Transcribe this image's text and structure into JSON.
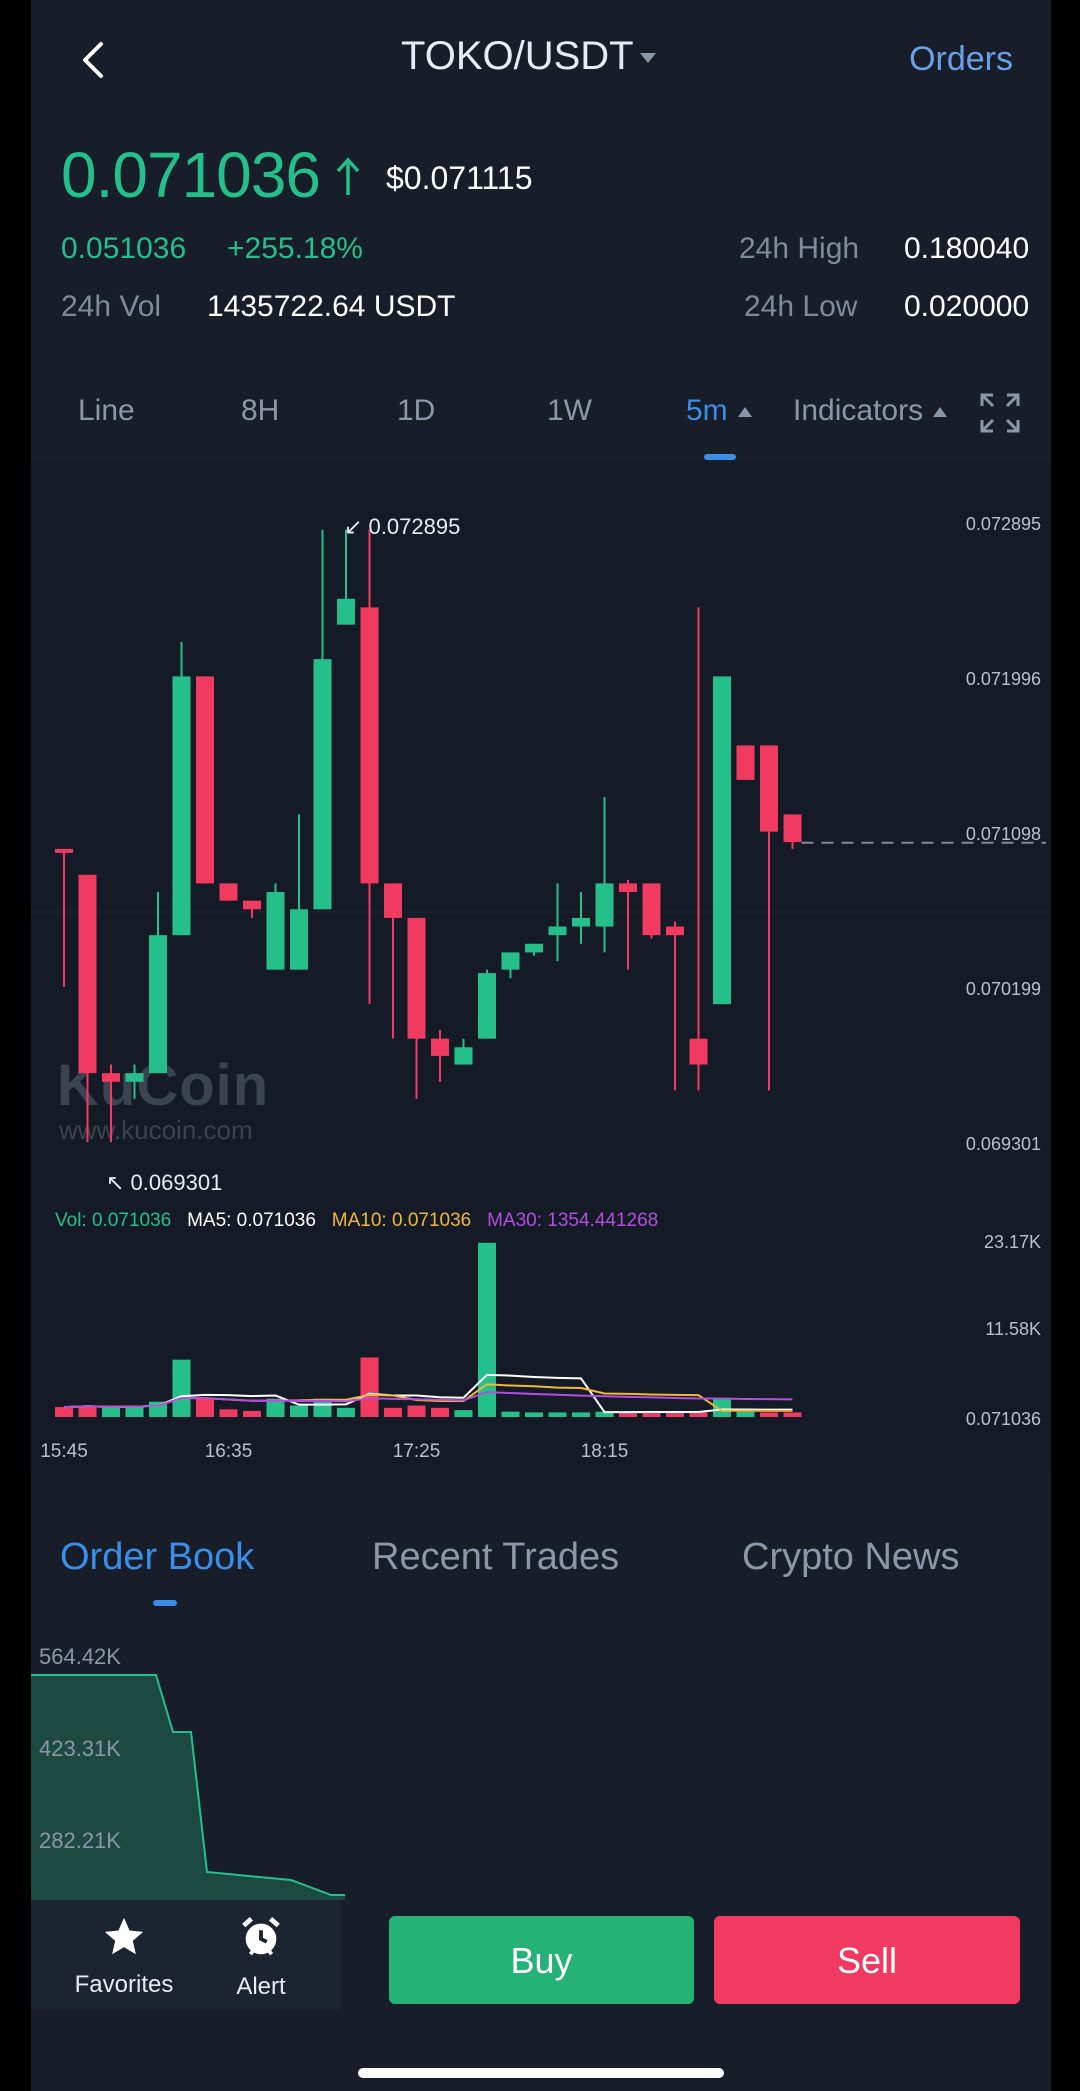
{
  "header": {
    "pair": "TOKO/USDT",
    "orders_label": "Orders"
  },
  "ticker": {
    "price": "0.071036",
    "usd_price": "$0.071115",
    "change": "0.051036",
    "change_pct": "+255.18%",
    "vol_label": "24h Vol",
    "vol_value": "1435722.64 USDT",
    "high_label": "24h High",
    "high_value": "0.180040",
    "low_label": "24h Low",
    "low_value": "0.020000"
  },
  "interval_tabs": {
    "line": "Line",
    "h8": "8H",
    "d1": "1D",
    "w1": "1W",
    "m5": "5m",
    "indicators": "Indicators"
  },
  "watermark": {
    "brand": "KuCoin",
    "url": "www.kucoin.com"
  },
  "indicator_legend": {
    "vol": "Vol: 0.071036",
    "ma5": "MA5: 0.071036",
    "ma10": "MA10: 0.071036",
    "ma30": "MA30: 1354.441268"
  },
  "colors": {
    "up": "#25c08a",
    "down": "#f03a5f",
    "accent": "#3a8ee8",
    "ma5": "#ffffff",
    "ma10": "#f0b83a",
    "ma30": "#b24de0"
  },
  "chart_data": {
    "type": "candlestick",
    "price_axis_labels": [
      "0.072895",
      "0.071996",
      "0.071098",
      "0.070199",
      "0.069301"
    ],
    "ylim": [
      0.069301,
      0.072895
    ],
    "max_label": "0.072895",
    "min_label": "0.069301",
    "current_price": 0.071036,
    "time_labels": [
      "15:45",
      "16:35",
      "17:25",
      "18:15"
    ],
    "candles": [
      {
        "o": 0.071,
        "c": 0.07098,
        "h": 0.071,
        "l": 0.0702
      },
      {
        "o": 0.07085,
        "c": 0.0697,
        "h": 0.07085,
        "l": 0.0693
      },
      {
        "o": 0.0697,
        "c": 0.06965,
        "h": 0.06975,
        "l": 0.0693
      },
      {
        "o": 0.06965,
        "c": 0.0697,
        "h": 0.06975,
        "l": 0.06955
      },
      {
        "o": 0.0697,
        "c": 0.0705,
        "h": 0.07075,
        "l": 0.0697
      },
      {
        "o": 0.0705,
        "c": 0.072,
        "h": 0.0722,
        "l": 0.0705
      },
      {
        "o": 0.072,
        "c": 0.0708,
        "h": 0.072,
        "l": 0.0708
      },
      {
        "o": 0.0708,
        "c": 0.0707,
        "h": 0.0708,
        "l": 0.0707
      },
      {
        "o": 0.0707,
        "c": 0.07065,
        "h": 0.0707,
        "l": 0.0706
      },
      {
        "o": 0.0703,
        "c": 0.07075,
        "h": 0.0708,
        "l": 0.0703
      },
      {
        "o": 0.0703,
        "c": 0.07065,
        "h": 0.0712,
        "l": 0.0703
      },
      {
        "o": 0.07065,
        "c": 0.0721,
        "h": 0.07285,
        "l": 0.07065
      },
      {
        "o": 0.0723,
        "c": 0.07245,
        "h": 0.07285,
        "l": 0.0723
      },
      {
        "o": 0.0724,
        "c": 0.0708,
        "h": 0.07285,
        "l": 0.0701
      },
      {
        "o": 0.0708,
        "c": 0.0706,
        "h": 0.0708,
        "l": 0.0699
      },
      {
        "o": 0.0706,
        "c": 0.0699,
        "h": 0.0706,
        "l": 0.06955
      },
      {
        "o": 0.0699,
        "c": 0.0698,
        "h": 0.06995,
        "l": 0.06965
      },
      {
        "o": 0.06975,
        "c": 0.06985,
        "h": 0.0699,
        "l": 0.06975
      },
      {
        "o": 0.0699,
        "c": 0.07028,
        "h": 0.0703,
        "l": 0.0699
      },
      {
        "o": 0.0703,
        "c": 0.0704,
        "h": 0.0704,
        "l": 0.07025
      },
      {
        "o": 0.0704,
        "c": 0.07045,
        "h": 0.07045,
        "l": 0.07038
      },
      {
        "o": 0.0705,
        "c": 0.07055,
        "h": 0.0708,
        "l": 0.07035
      },
      {
        "o": 0.07055,
        "c": 0.0706,
        "h": 0.07075,
        "l": 0.07045
      },
      {
        "o": 0.07055,
        "c": 0.0708,
        "h": 0.0713,
        "l": 0.0704
      },
      {
        "o": 0.0708,
        "c": 0.07075,
        "h": 0.07082,
        "l": 0.0703
      },
      {
        "o": 0.0708,
        "c": 0.0705,
        "h": 0.0708,
        "l": 0.07048
      },
      {
        "o": 0.07055,
        "c": 0.0705,
        "h": 0.07058,
        "l": 0.0696
      },
      {
        "o": 0.0699,
        "c": 0.06975,
        "h": 0.0724,
        "l": 0.0696
      },
      {
        "o": 0.0701,
        "c": 0.072,
        "h": 0.072,
        "l": 0.0701
      },
      {
        "o": 0.0716,
        "c": 0.0714,
        "h": 0.0716,
        "l": 0.0714
      },
      {
        "o": 0.0716,
        "c": 0.0711,
        "h": 0.0716,
        "l": 0.0696
      },
      {
        "o": 0.0712,
        "c": 0.07104,
        "h": 0.0712,
        "l": 0.071
      }
    ],
    "volume_axis_labels": [
      "23.17K",
      "11.58K",
      "0.071036"
    ],
    "volume_max": 23170,
    "volume": [
      {
        "v": 1300,
        "up": false
      },
      {
        "v": 1500,
        "up": false
      },
      {
        "v": 1200,
        "up": true
      },
      {
        "v": 1400,
        "up": true
      },
      {
        "v": 2000,
        "up": true
      },
      {
        "v": 7500,
        "up": true
      },
      {
        "v": 2400,
        "up": false
      },
      {
        "v": 1000,
        "up": false
      },
      {
        "v": 800,
        "up": false
      },
      {
        "v": 2400,
        "up": true
      },
      {
        "v": 1500,
        "up": true
      },
      {
        "v": 2400,
        "up": true
      },
      {
        "v": 1200,
        "up": true
      },
      {
        "v": 7800,
        "up": false
      },
      {
        "v": 1200,
        "up": false
      },
      {
        "v": 1500,
        "up": false
      },
      {
        "v": 1200,
        "up": false
      },
      {
        "v": 900,
        "up": true
      },
      {
        "v": 22800,
        "up": true
      },
      {
        "v": 700,
        "up": true
      },
      {
        "v": 600,
        "up": true
      },
      {
        "v": 600,
        "up": true
      },
      {
        "v": 600,
        "up": true
      },
      {
        "v": 700,
        "up": true
      },
      {
        "v": 700,
        "up": false
      },
      {
        "v": 700,
        "up": false
      },
      {
        "v": 600,
        "up": false
      },
      {
        "v": 600,
        "up": false
      },
      {
        "v": 2300,
        "up": true
      },
      {
        "v": 700,
        "up": true
      },
      {
        "v": 600,
        "up": false
      },
      {
        "v": 600,
        "up": false
      }
    ]
  },
  "orderbook": {
    "tab_orderbook": "Order Book",
    "tab_trades": "Recent Trades",
    "tab_news": "Crypto News",
    "depth_labels": [
      "564.42K",
      "423.31K",
      "282.21K"
    ]
  },
  "bottom": {
    "favorites": "Favorites",
    "alert": "Alert",
    "buy": "Buy",
    "sell": "Sell"
  }
}
